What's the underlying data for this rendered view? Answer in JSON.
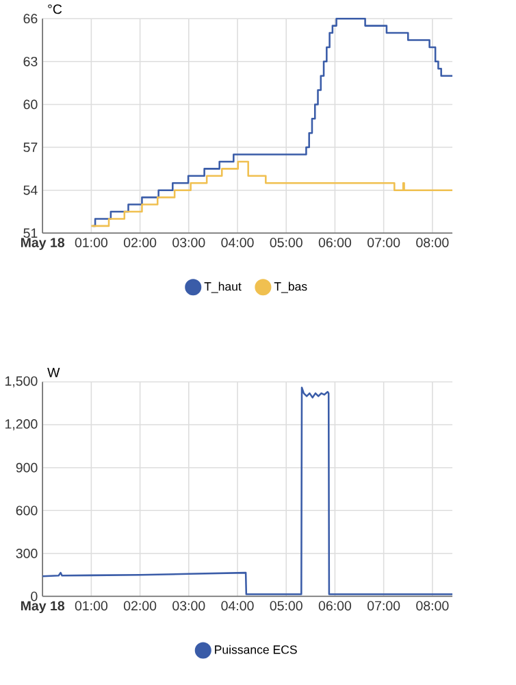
{
  "chart_data": [
    {
      "type": "step",
      "ylabel": "°C",
      "xlim": [
        0,
        8.41
      ],
      "ylim": [
        51,
        66
      ],
      "yticks": [
        51,
        54,
        57,
        60,
        63,
        66
      ],
      "xticks": [
        {
          "value": 0,
          "label": "**May 18**"
        },
        {
          "value": 1,
          "label": "01:00"
        },
        {
          "value": 2,
          "label": "02:00"
        },
        {
          "value": 3,
          "label": "03:00"
        },
        {
          "value": 4,
          "label": "04:00"
        },
        {
          "value": 5,
          "label": "05:00"
        },
        {
          "value": 6,
          "label": "06:00"
        },
        {
          "value": 7,
          "label": "07:00"
        },
        {
          "value": 8,
          "label": "08:00"
        }
      ],
      "grid": true,
      "legend": "bottom",
      "series": [
        {
          "name": "T_haut",
          "color": "#3a5ca8",
          "x": [
            1.03,
            1.08,
            1.4,
            1.76,
            2.04,
            2.38,
            2.67,
            2.99,
            3.32,
            3.63,
            3.92,
            5.41,
            5.47,
            5.53,
            5.59,
            5.65,
            5.71,
            5.77,
            5.83,
            5.89,
            5.95,
            6.03,
            6.62,
            7.06,
            7.5,
            7.94,
            8.06,
            8.12,
            8.18,
            8.41
          ],
          "values": [
            51.5,
            52,
            52.5,
            53,
            53.5,
            54,
            54.5,
            55,
            55.5,
            56,
            56.5,
            57,
            58,
            59,
            60,
            61,
            62,
            63,
            64,
            65,
            65.5,
            66,
            65.5,
            65,
            64.5,
            64,
            63,
            62.5,
            62,
            62
          ]
        },
        {
          "name": "T_bas",
          "color": "#f0c050",
          "x": [
            1.0,
            1.36,
            1.68,
            2.04,
            2.36,
            2.71,
            3.04,
            3.37,
            3.68,
            4.01,
            4.22,
            4.58,
            7.22,
            7.4,
            7.42,
            8.41
          ],
          "values": [
            51.5,
            52,
            52.5,
            53,
            53.5,
            54,
            54.5,
            55,
            55.5,
            56,
            55,
            54.5,
            54,
            54.5,
            54,
            54
          ]
        }
      ]
    },
    {
      "type": "line",
      "ylabel": "W",
      "xlim": [
        0,
        8.41
      ],
      "ylim": [
        0,
        1500
      ],
      "yticks": [
        0,
        300,
        600,
        900,
        {
          "value": 1200,
          "label": "1,200"
        },
        {
          "value": 1500,
          "label": "1,500"
        }
      ],
      "xticks": [
        {
          "value": 0,
          "label": "**May 18**"
        },
        {
          "value": 1,
          "label": "01:00"
        },
        {
          "value": 2,
          "label": "02:00"
        },
        {
          "value": 3,
          "label": "03:00"
        },
        {
          "value": 4,
          "label": "04:00"
        },
        {
          "value": 5,
          "label": "05:00"
        },
        {
          "value": 6,
          "label": "06:00"
        },
        {
          "value": 7,
          "label": "07:00"
        },
        {
          "value": 8,
          "label": "08:00"
        }
      ],
      "grid": true,
      "legend": "bottom",
      "series": [
        {
          "name": "Puissance ECS",
          "color": "#3a5ca8",
          "x": [
            0,
            0.33,
            0.37,
            0.4,
            1,
            2,
            3,
            4.17,
            4.18,
            5.31,
            5.32,
            5.36,
            5.42,
            5.48,
            5.54,
            5.6,
            5.66,
            5.72,
            5.78,
            5.85,
            5.87,
            5.88,
            8.41
          ],
          "values": [
            140,
            145,
            165,
            145,
            147,
            150,
            157,
            165,
            15,
            15,
            1460,
            1420,
            1400,
            1420,
            1390,
            1420,
            1400,
            1420,
            1410,
            1430,
            1420,
            15,
            15
          ]
        }
      ]
    }
  ]
}
